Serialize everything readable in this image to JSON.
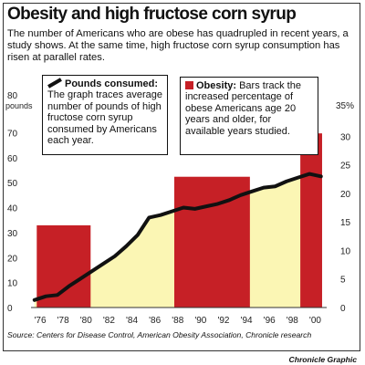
{
  "chart_data": {
    "type": "bar",
    "title": "Obesity and high fructose corn syrup",
    "subtitle": "The number of Americans who are obese has quadrupled in recent years, a study shows. At the same time, high fructose corn syrup consumption has risen at parallel rates.",
    "left_axis": {
      "unit": "pounds",
      "ticks": [
        0,
        10,
        20,
        30,
        40,
        50,
        60,
        70,
        80
      ],
      "top_label": "80",
      "ylim": [
        0,
        80
      ]
    },
    "right_axis": {
      "unit": "%",
      "ticks": [
        0,
        5,
        10,
        15,
        20,
        25,
        30
      ],
      "top_label": "35%",
      "ylim": [
        0,
        35
      ]
    },
    "x_tick_labels": [
      "'76",
      "'78",
      "'80",
      "'82",
      "'84",
      "'86",
      "'88",
      "'90",
      "'92",
      "'94",
      "'96",
      "'98",
      "'00"
    ],
    "xlim": [
      1975.2,
      2001.0
    ],
    "series": [
      {
        "name": "Pounds consumed",
        "kind": "line-area",
        "axis": "left",
        "x": [
          1975.5,
          1976.5,
          1977.5,
          1978.5,
          1979.5,
          1980.5,
          1981.5,
          1982.5,
          1983.5,
          1984.5,
          1985.5,
          1986.5,
          1987.5,
          1988.5,
          1989.5,
          1990.5,
          1991.5,
          1992.5,
          1993.5,
          1994.5,
          1995.5,
          1996.5,
          1997.5,
          1998.5,
          1999.5,
          2000.5
        ],
        "values": [
          3,
          4.5,
          5,
          8.5,
          11.5,
          14.5,
          17.5,
          20.5,
          24.5,
          29,
          36,
          37,
          38.5,
          40,
          39.5,
          40.5,
          41.5,
          43,
          45,
          46.5,
          48,
          48.5,
          50.5,
          52,
          53.5,
          52.5
        ]
      },
      {
        "name": "Obesity",
        "kind": "bar",
        "axis": "right",
        "bars": [
          {
            "x_start": 1975.7,
            "x_end": 1980.4,
            "value": 14.4
          },
          {
            "x_start": 1987.7,
            "x_end": 1994.3,
            "value": 22.9
          },
          {
            "x_start": 1998.7,
            "x_end": 2000.6,
            "value": 30.5
          }
        ]
      }
    ],
    "annotations": [
      {
        "name": "Pounds consumed",
        "text": "The graph traces average number of pounds of high fructose corn syrup consumed by Americans each year."
      },
      {
        "name": "Obesity",
        "text": "Bars track the increased percentage of obese Americans age 20 years and older, for available years studied."
      }
    ]
  },
  "source": "Source: Centers for Disease Control, American Obesity Association, Chronicle research",
  "credit": "Chronicle Graphic",
  "colors": {
    "bar": "#c62026",
    "area": "#fbf6b4",
    "line": "#111111",
    "text": "#111111"
  }
}
